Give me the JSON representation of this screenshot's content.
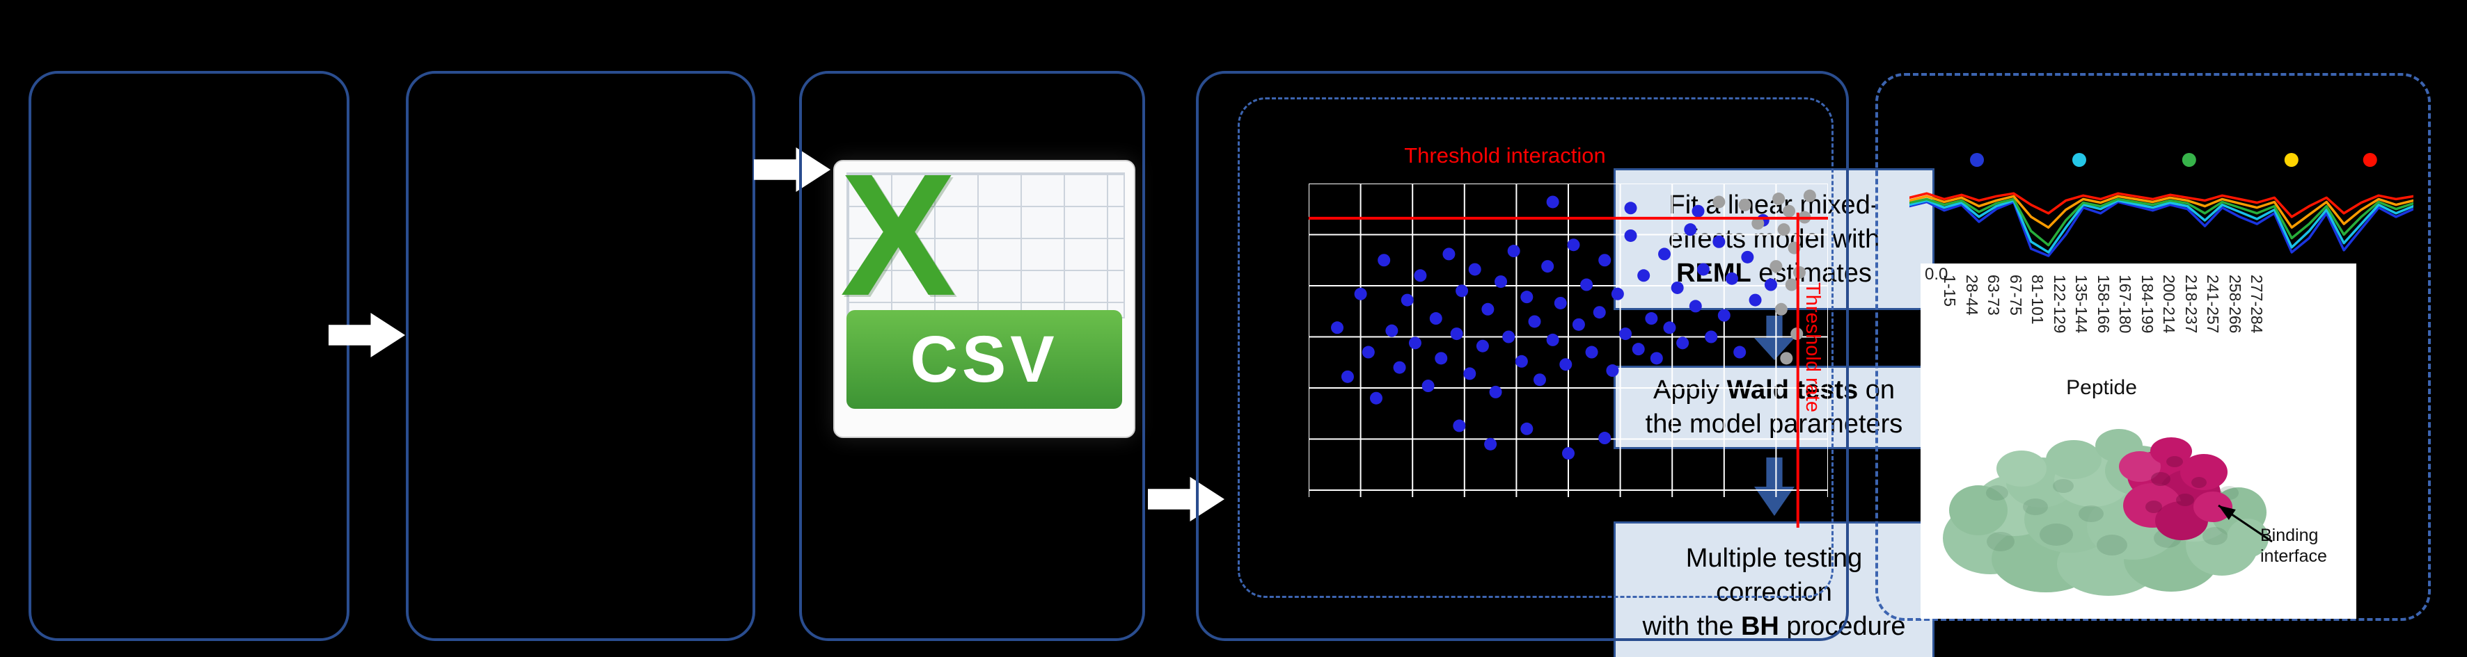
{
  "colors": {
    "background": "#000000",
    "panel_border": "#2a4d8f",
    "dashed_border": "#3c64b0",
    "step_box_fill": "#dbe5f1",
    "step_box_border": "#2f5597",
    "flow_arrow": "#ffffff",
    "threshold_red": "#ff0000",
    "scatter_blue": "#2424e0",
    "scatter_gray": "#a0a0a0",
    "csv_green": "#42a62e"
  },
  "csv_icon": {
    "letter": "X",
    "label": "CSV"
  },
  "model_steps": {
    "boxes": [
      {
        "lines": [
          [
            {
              "t": "Fit a linear mixed-"
            }
          ],
          [
            {
              "t": "effects model with"
            }
          ],
          [
            {
              "t": "REML",
              "b": true
            },
            {
              "t": " estimates"
            }
          ]
        ]
      },
      {
        "lines": [
          [
            {
              "t": "Apply "
            },
            {
              "t": "Wald tests",
              "b": true
            },
            {
              "t": " on"
            }
          ],
          [
            {
              "t": "the model parameters"
            }
          ]
        ]
      },
      {
        "lines": [
          [
            {
              "t": "Multiple testing"
            }
          ],
          [
            {
              "t": "correction"
            }
          ],
          [
            {
              "t": "with the "
            },
            {
              "t": "BH",
              "b": true
            },
            {
              "t": " procedure"
            }
          ]
        ]
      }
    ]
  },
  "chart_data": [
    {
      "type": "scatter",
      "title": "",
      "xlabel": "",
      "ylabel": "",
      "grid": {
        "v_lines": 11,
        "h_lines": 7
      },
      "annotations": {
        "h_threshold_label": "Threshold interaction",
        "v_threshold_label": "Threshold rate"
      },
      "thresholds": {
        "h_frac": 0.113,
        "v_frac": 0.942,
        "color": "#ff0000"
      },
      "series": [
        {
          "name": "significant-peptides",
          "color": "#2424e0",
          "points": [
            [
              0.055,
              0.47
            ],
            [
              0.075,
              0.63
            ],
            [
              0.1,
              0.36
            ],
            [
              0.115,
              0.55
            ],
            [
              0.13,
              0.7
            ],
            [
              0.145,
              0.25
            ],
            [
              0.16,
              0.48
            ],
            [
              0.175,
              0.6
            ],
            [
              0.19,
              0.38
            ],
            [
              0.205,
              0.52
            ],
            [
              0.215,
              0.3
            ],
            [
              0.23,
              0.66
            ],
            [
              0.245,
              0.44
            ],
            [
              0.255,
              0.57
            ],
            [
              0.27,
              0.23
            ],
            [
              0.285,
              0.49
            ],
            [
              0.295,
              0.35
            ],
            [
              0.31,
              0.62
            ],
            [
              0.32,
              0.28
            ],
            [
              0.335,
              0.53
            ],
            [
              0.345,
              0.41
            ],
            [
              0.36,
              0.68
            ],
            [
              0.37,
              0.32
            ],
            [
              0.385,
              0.5
            ],
            [
              0.395,
              0.22
            ],
            [
              0.41,
              0.58
            ],
            [
              0.42,
              0.37
            ],
            [
              0.435,
              0.45
            ],
            [
              0.445,
              0.64
            ],
            [
              0.46,
              0.27
            ],
            [
              0.47,
              0.51
            ],
            [
              0.485,
              0.39
            ],
            [
              0.495,
              0.59
            ],
            [
              0.51,
              0.2
            ],
            [
              0.52,
              0.46
            ],
            [
              0.535,
              0.33
            ],
            [
              0.545,
              0.55
            ],
            [
              0.56,
              0.42
            ],
            [
              0.57,
              0.25
            ],
            [
              0.585,
              0.61
            ],
            [
              0.595,
              0.36
            ],
            [
              0.61,
              0.49
            ],
            [
              0.62,
              0.17
            ],
            [
              0.635,
              0.54
            ],
            [
              0.645,
              0.3
            ],
            [
              0.66,
              0.44
            ],
            [
              0.67,
              0.57
            ],
            [
              0.685,
              0.23
            ],
            [
              0.695,
              0.47
            ],
            [
              0.71,
              0.34
            ],
            [
              0.72,
              0.52
            ],
            [
              0.735,
              0.15
            ],
            [
              0.745,
              0.4
            ],
            [
              0.76,
              0.28
            ],
            [
              0.775,
              0.5
            ],
            [
              0.79,
              0.19
            ],
            [
              0.8,
              0.43
            ],
            [
              0.815,
              0.31
            ],
            [
              0.83,
              0.55
            ],
            [
              0.845,
              0.24
            ],
            [
              0.86,
              0.38
            ],
            [
              0.875,
              0.12
            ],
            [
              0.89,
              0.33
            ],
            [
              0.35,
              0.85
            ],
            [
              0.42,
              0.8
            ],
            [
              0.5,
              0.88
            ],
            [
              0.29,
              0.79
            ],
            [
              0.57,
              0.83
            ],
            [
              0.62,
              0.08
            ],
            [
              0.47,
              0.06
            ],
            [
              0.75,
              0.09
            ]
          ]
        },
        {
          "name": "non-significant-peptides",
          "color": "#a0a0a0",
          "points": [
            [
              0.905,
              0.05
            ],
            [
              0.925,
              0.09
            ],
            [
              0.915,
              0.15
            ],
            [
              0.935,
              0.21
            ],
            [
              0.9,
              0.27
            ],
            [
              0.93,
              0.33
            ],
            [
              0.91,
              0.41
            ],
            [
              0.94,
              0.49
            ],
            [
              0.92,
              0.57
            ],
            [
              0.84,
              0.07
            ],
            [
              0.865,
              0.13
            ],
            [
              0.79,
              0.06
            ],
            [
              0.955,
              0.11
            ],
            [
              0.945,
              0.29
            ],
            [
              0.965,
              0.04
            ]
          ]
        }
      ]
    },
    {
      "type": "line",
      "title": "",
      "xlabel": "Peptide",
      "ylabel": "",
      "y_tick_labels": [
        "0.0"
      ],
      "x_tick_labels": [
        "1-15",
        "28-44",
        "63-73",
        "67-75",
        "81-101",
        "122-129",
        "135-144",
        "158-166",
        "167-180",
        "184-199",
        "200-214",
        "218-237",
        "241-257",
        "258-266",
        "277-284"
      ],
      "legend_dots": [
        {
          "color": "#2338d6",
          "x_frac": 0.134
        },
        {
          "color": "#25c7e8",
          "x_frac": 0.337
        },
        {
          "color": "#37b34a",
          "x_frac": 0.555
        },
        {
          "color": "#ffd400",
          "x_frac": 0.758
        },
        {
          "color": "#ff0f00",
          "x_frac": 0.914
        }
      ],
      "series": [
        {
          "name": "blue",
          "color": "#1a35e0",
          "values": [
            0.7,
            0.76,
            0.64,
            0.72,
            0.48,
            0.66,
            0.76,
            0.1,
            0.0,
            0.3,
            0.68,
            0.6,
            0.76,
            0.7,
            0.64,
            0.72,
            0.66,
            0.42,
            0.68,
            0.55,
            0.45,
            0.6,
            0.05,
            0.25,
            0.6,
            0.08,
            0.38,
            0.68,
            0.55,
            0.66
          ]
        },
        {
          "name": "cyan",
          "color": "#19c0e8",
          "values": [
            0.72,
            0.78,
            0.68,
            0.75,
            0.55,
            0.7,
            0.78,
            0.2,
            0.05,
            0.4,
            0.72,
            0.66,
            0.78,
            0.73,
            0.68,
            0.75,
            0.7,
            0.5,
            0.72,
            0.62,
            0.52,
            0.65,
            0.12,
            0.35,
            0.65,
            0.18,
            0.45,
            0.72,
            0.6,
            0.7
          ]
        },
        {
          "name": "green",
          "color": "#27ae3b",
          "values": [
            0.75,
            0.8,
            0.72,
            0.78,
            0.62,
            0.74,
            0.8,
            0.35,
            0.15,
            0.5,
            0.75,
            0.7,
            0.8,
            0.76,
            0.72,
            0.78,
            0.74,
            0.6,
            0.76,
            0.68,
            0.6,
            0.7,
            0.25,
            0.45,
            0.7,
            0.3,
            0.55,
            0.76,
            0.66,
            0.74
          ]
        },
        {
          "name": "orange",
          "color": "#ff9c00",
          "values": [
            0.78,
            0.84,
            0.76,
            0.82,
            0.7,
            0.78,
            0.84,
            0.55,
            0.4,
            0.65,
            0.8,
            0.75,
            0.84,
            0.8,
            0.76,
            0.82,
            0.78,
            0.7,
            0.8,
            0.74,
            0.68,
            0.76,
            0.4,
            0.58,
            0.76,
            0.45,
            0.65,
            0.8,
            0.72,
            0.78
          ]
        },
        {
          "name": "red",
          "color": "#ff1500",
          "values": [
            0.82,
            0.88,
            0.8,
            0.86,
            0.78,
            0.84,
            0.88,
            0.72,
            0.6,
            0.78,
            0.85,
            0.8,
            0.88,
            0.84,
            0.8,
            0.86,
            0.82,
            0.78,
            0.85,
            0.8,
            0.75,
            0.82,
            0.55,
            0.7,
            0.82,
            0.6,
            0.75,
            0.85,
            0.8,
            0.84
          ]
        }
      ]
    }
  ],
  "protein": {
    "caption": "Binding interface"
  }
}
